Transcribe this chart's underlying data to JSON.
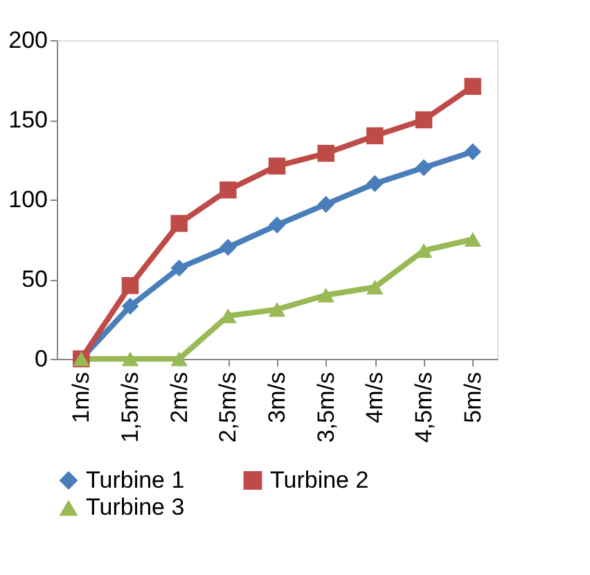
{
  "chart_data": {
    "type": "line",
    "categories": [
      "1m/s",
      "1,5m/s",
      "2m/s",
      "2,5m/s",
      "3m/s",
      "3,5m/s",
      "4m/s",
      "4,5m/s",
      "5m/s"
    ],
    "series": [
      {
        "name": "Turbine 1",
        "color": "#4a7ebb",
        "marker": "diamond",
        "values": [
          0,
          33,
          57,
          70,
          84,
          97,
          110,
          120,
          130
        ]
      },
      {
        "name": "Turbine 2",
        "color": "#be4b48",
        "marker": "square",
        "values": [
          0,
          46,
          85,
          106,
          121,
          129,
          140,
          150,
          171
        ]
      },
      {
        "name": "Turbine 3",
        "color": "#98b954",
        "marker": "triangle",
        "values": [
          0,
          0,
          0,
          27,
          31,
          40,
          45,
          68,
          75
        ]
      }
    ],
    "ylim": [
      0,
      200
    ],
    "yticks": [
      0,
      50,
      100,
      150,
      200
    ],
    "grid": false,
    "legend": "bottom",
    "line_style": "solid"
  }
}
